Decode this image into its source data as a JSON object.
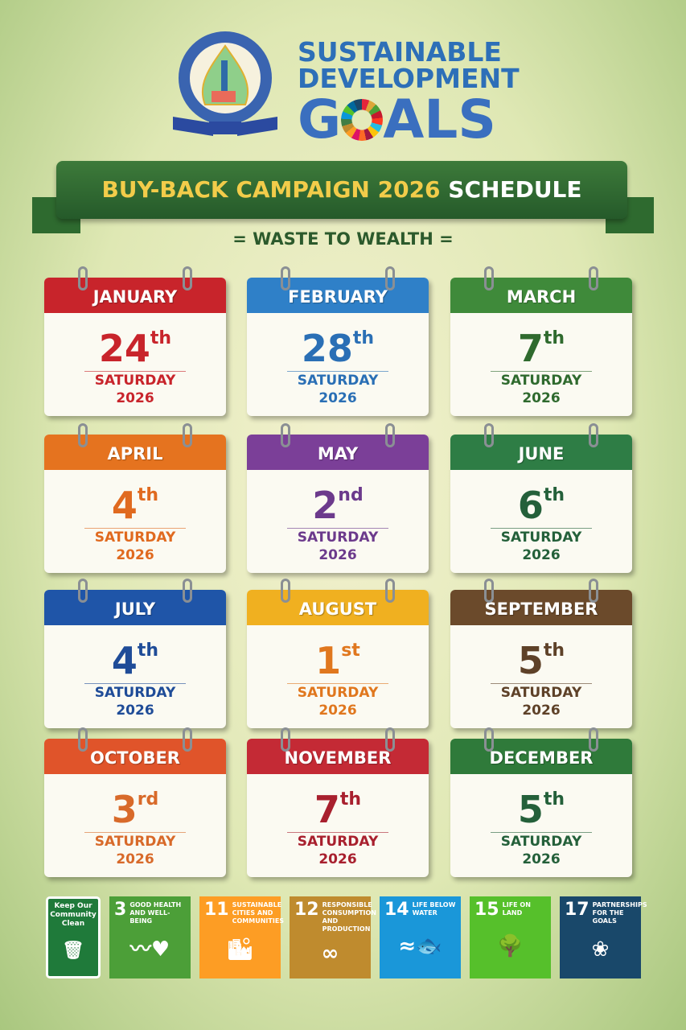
{
  "header": {
    "sdg_line1": "SUSTAINABLE",
    "sdg_line2": "DEVELOPMENT",
    "sdg_line3_a": "G",
    "sdg_line3_b": "ALS"
  },
  "banner": {
    "title_a": "BUY-BACK CAMPAIGN 2026",
    "title_b": "SCHEDULE",
    "subtitle": "= WASTE TO WEALTH ="
  },
  "schedule": [
    {
      "month": "JANUARY",
      "day": "24",
      "suffix": "th",
      "weekday": "SATURDAY",
      "year": "2026",
      "color": "#c8242b",
      "text": "#c8242b"
    },
    {
      "month": "FEBRUARY",
      "day": "28",
      "suffix": "th",
      "weekday": "SATURDAY",
      "year": "2026",
      "color": "#2f80c8",
      "text": "#2a6fb5"
    },
    {
      "month": "MARCH",
      "day": "7",
      "suffix": "th",
      "weekday": "SATURDAY",
      "year": "2026",
      "color": "#3f8a3a",
      "text": "#2f6a2e"
    },
    {
      "month": "APRIL",
      "day": "4",
      "suffix": "th",
      "weekday": "SATURDAY",
      "year": "2026",
      "color": "#e5731f",
      "text": "#e06a1f"
    },
    {
      "month": "MAY",
      "day": "2",
      "suffix": "nd",
      "weekday": "SATURDAY",
      "year": "2026",
      "color": "#7b3f98",
      "text": "#6c3a8c"
    },
    {
      "month": "JUNE",
      "day": "6",
      "suffix": "th",
      "weekday": "SATURDAY",
      "year": "2026",
      "color": "#2e7d45",
      "text": "#24603a"
    },
    {
      "month": "JULY",
      "day": "4",
      "suffix": "th",
      "weekday": "SATURDAY",
      "year": "2026",
      "color": "#1f55a8",
      "text": "#1f4c98"
    },
    {
      "month": "AUGUST",
      "day": "1",
      "suffix": "st",
      "weekday": "SATURDAY",
      "year": "2026",
      "color": "#f0b020",
      "text": "#e0771e"
    },
    {
      "month": "SEPTEMBER",
      "day": "5",
      "suffix": "th",
      "weekday": "SATURDAY",
      "year": "2026",
      "color": "#6b4a2b",
      "text": "#5e4128"
    },
    {
      "month": "OCTOBER",
      "day": "3",
      "suffix": "rd",
      "weekday": "SATURDAY",
      "year": "2026",
      "color": "#e0542a",
      "text": "#d86a2a"
    },
    {
      "month": "NOVEMBER",
      "day": "7",
      "suffix": "th",
      "weekday": "SATURDAY",
      "year": "2026",
      "color": "#c42a35",
      "text": "#a8202e"
    },
    {
      "month": "DECEMBER",
      "day": "5",
      "suffix": "th",
      "weekday": "SATURDAY",
      "year": "2026",
      "color": "#2f7a3a",
      "text": "#24603a"
    }
  ],
  "goals": [
    {
      "num": "",
      "title": "Keep Our Community Clean",
      "icon": "trash-bin-icon",
      "glyph": "🗑",
      "color": "#1f7a3a"
    },
    {
      "num": "3",
      "title": "GOOD HEALTH AND WELL-BEING",
      "icon": "heartbeat-icon",
      "glyph": "〰♥",
      "color": "#4c9f38"
    },
    {
      "num": "11",
      "title": "SUSTAINABLE CITIES AND COMMUNITIES",
      "icon": "city-icon",
      "glyph": "🏙",
      "color": "#fd9d24"
    },
    {
      "num": "12",
      "title": "RESPONSIBLE CONSUMPTION AND PRODUCTION",
      "icon": "infinity-icon",
      "glyph": "∞",
      "color": "#bf8b2e"
    },
    {
      "num": "14",
      "title": "LIFE BELOW WATER",
      "icon": "fish-icon",
      "glyph": "≈🐟",
      "color": "#1a97d9"
    },
    {
      "num": "15",
      "title": "LIFE ON LAND",
      "icon": "tree-icon",
      "glyph": "🌳",
      "color": "#56c02b"
    },
    {
      "num": "17",
      "title": "PARTNERSHIPS FOR THE GOALS",
      "icon": "rings-icon",
      "glyph": "❀",
      "color": "#19486a"
    }
  ]
}
